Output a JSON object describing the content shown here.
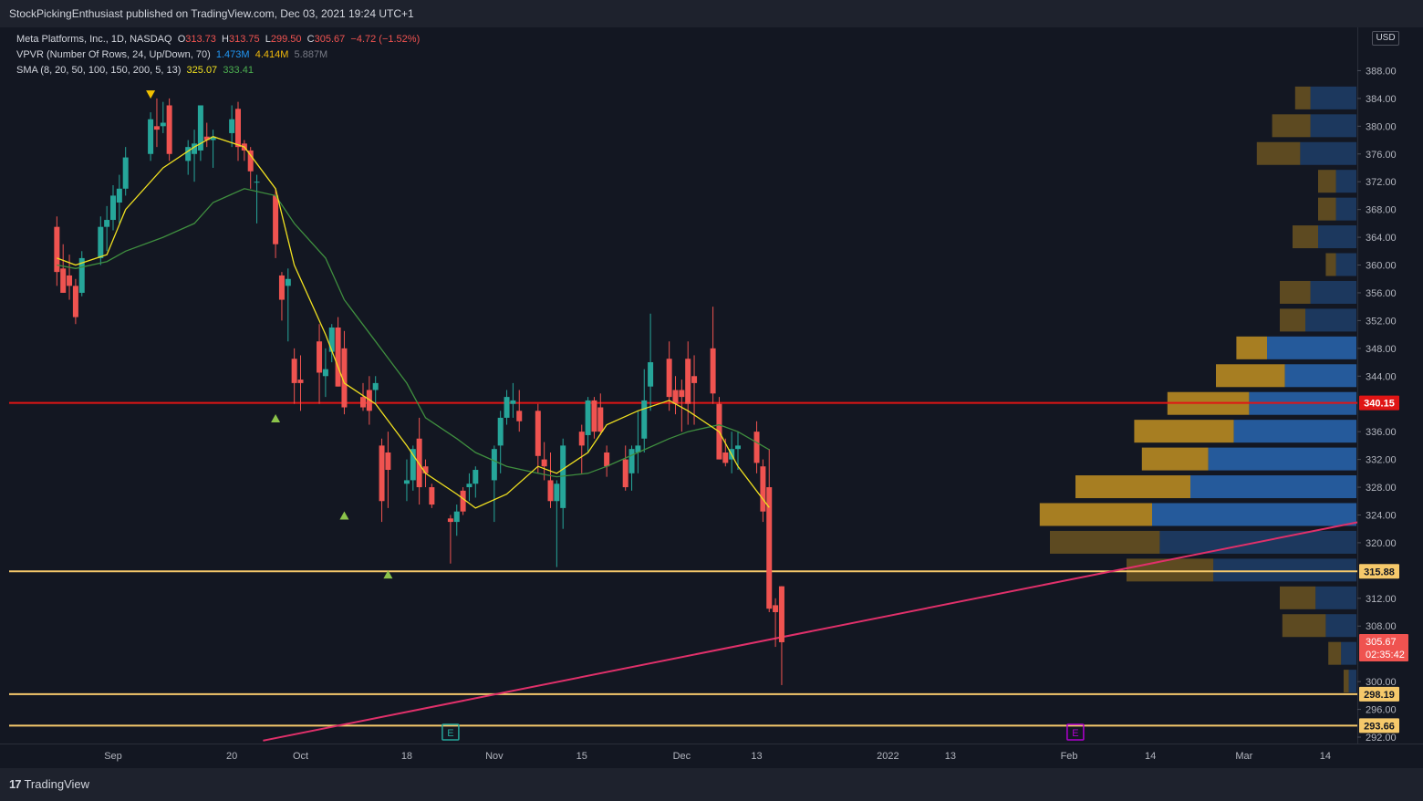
{
  "header": {
    "publisher": "StockPickingEnthusiast published on TradingView.com, Dec 03, 2021 19:24 UTC+1"
  },
  "legend": {
    "symbol": "Meta Platforms, Inc., 1D, NASDAQ",
    "o_label": "O",
    "o": "313.73",
    "h_label": "H",
    "h": "313.75",
    "l_label": "L",
    "l": "299.50",
    "c_label": "C",
    "c": "305.67",
    "change": "−4.72 (−1.52%)",
    "vpvr_label": "VPVR (Number Of Rows, 24, Up/Down, 70)",
    "vpvr_up": "1.473M",
    "vpvr_down": "4.414M",
    "vpvr_total": "5.887M",
    "sma_label": "SMA (8, 20, 50, 100, 150, 200, 5, 13)",
    "sma_fast": "325.07",
    "sma_slow": "333.41"
  },
  "currency": "USD",
  "footer": {
    "logo_text": "TradingView"
  },
  "colors": {
    "background": "#131722",
    "up": "#26a69a",
    "down": "#ef5350",
    "sma_fast": "#f0e020",
    "sma_slow": "#3f8f3f",
    "resistance": "#e01515",
    "support": "#f6c96b",
    "trendline": "#e0306a",
    "vp_up": "#2862a8",
    "vp_down": "#b88a22"
  },
  "chart_data": {
    "type": "candlestick",
    "y_axis": {
      "range": [
        292,
        392
      ],
      "ticks": [
        "388.00",
        "384.00",
        "380.00",
        "376.00",
        "372.00",
        "368.00",
        "364.00",
        "360.00",
        "356.00",
        "352.00",
        "348.00",
        "344.00",
        "336.00",
        "332.00",
        "328.00",
        "324.00",
        "320.00",
        "312.00",
        "308.00",
        "300.00",
        "296.00",
        "292.00"
      ]
    },
    "x_axis": {
      "ticks": [
        {
          "label": "Sep",
          "date": "2021-09-01"
        },
        {
          "label": "20",
          "date": "2021-09-20"
        },
        {
          "label": "Oct",
          "date": "2021-10-01"
        },
        {
          "label": "18",
          "date": "2021-10-18"
        },
        {
          "label": "Nov",
          "date": "2021-11-01"
        },
        {
          "label": "15",
          "date": "2021-11-15"
        },
        {
          "label": "Dec",
          "date": "2021-12-01"
        },
        {
          "label": "13",
          "date": "2021-12-13"
        },
        {
          "label": "2022",
          "date": "2022-01-03"
        },
        {
          "label": "13",
          "date": "2022-01-13"
        },
        {
          "label": "Feb",
          "date": "2022-02-01"
        },
        {
          "label": "14",
          "date": "2022-02-14"
        },
        {
          "label": "Mar",
          "date": "2022-03-01"
        },
        {
          "label": "14",
          "date": "2022-03-14"
        }
      ]
    },
    "candles": [
      {
        "date": "2021-08-23",
        "o": 365.5,
        "h": 367.0,
        "l": 357.0,
        "c": 359.0
      },
      {
        "date": "2021-08-24",
        "o": 359.5,
        "h": 363.0,
        "l": 356.0,
        "c": 356.0
      },
      {
        "date": "2021-08-25",
        "o": 358.5,
        "h": 361.5,
        "l": 355.0,
        "c": 357.0
      },
      {
        "date": "2021-08-26",
        "o": 357.0,
        "h": 358.0,
        "l": 351.5,
        "c": 352.5
      },
      {
        "date": "2021-08-27",
        "o": 356.0,
        "h": 362.0,
        "l": 355.5,
        "c": 361.0
      },
      {
        "date": "2021-08-30",
        "o": 361.0,
        "h": 367.0,
        "l": 360.0,
        "c": 365.5
      },
      {
        "date": "2021-08-31",
        "o": 365.5,
        "h": 368.5,
        "l": 362.0,
        "c": 366.5
      },
      {
        "date": "2021-09-01",
        "o": 366.5,
        "h": 371.5,
        "l": 365.0,
        "c": 370.0
      },
      {
        "date": "2021-09-02",
        "o": 369.0,
        "h": 373.0,
        "l": 366.0,
        "c": 371.0
      },
      {
        "date": "2021-09-03",
        "o": 371.0,
        "h": 377.0,
        "l": 370.0,
        "c": 375.5
      },
      {
        "date": "2021-09-07",
        "o": 376.0,
        "h": 382.0,
        "l": 375.0,
        "c": 381.0
      },
      {
        "date": "2021-09-08",
        "o": 380.0,
        "h": 384.0,
        "l": 377.0,
        "c": 379.5
      },
      {
        "date": "2021-09-09",
        "o": 380.0,
        "h": 383.5,
        "l": 379.0,
        "c": 380.5
      },
      {
        "date": "2021-09-10",
        "o": 383.0,
        "h": 384.0,
        "l": 375.0,
        "c": 376.0
      },
      {
        "date": "2021-09-13",
        "o": 375.0,
        "h": 378.0,
        "l": 373.0,
        "c": 377.0
      },
      {
        "date": "2021-09-14",
        "o": 376.0,
        "h": 379.5,
        "l": 372.0,
        "c": 377.5
      },
      {
        "date": "2021-09-15",
        "o": 376.5,
        "h": 383.0,
        "l": 375.0,
        "c": 383.0
      },
      {
        "date": "2021-09-16",
        "o": 378.5,
        "h": 380.5,
        "l": 377.0,
        "c": 378.0
      },
      {
        "date": "2021-09-17",
        "o": 378.0,
        "h": 379.5,
        "l": 374.0,
        "c": 378.5
      },
      {
        "date": "2021-09-20",
        "o": 379.0,
        "h": 383.0,
        "l": 377.0,
        "c": 381.0
      },
      {
        "date": "2021-09-21",
        "o": 382.5,
        "h": 383.5,
        "l": 375.0,
        "c": 377.0
      },
      {
        "date": "2021-09-22",
        "o": 377.5,
        "h": 378.0,
        "l": 375.0,
        "c": 376.5
      },
      {
        "date": "2021-09-23",
        "o": 376.5,
        "h": 377.0,
        "l": 371.0,
        "c": 373.5
      },
      {
        "date": "2021-09-24",
        "o": 372.0,
        "h": 373.0,
        "l": 366.0,
        "c": 372.0
      },
      {
        "date": "2021-09-27",
        "o": 370.0,
        "h": 371.0,
        "l": 361.0,
        "c": 363.0
      },
      {
        "date": "2021-09-28",
        "o": 358.5,
        "h": 359.0,
        "l": 352.0,
        "c": 355.0
      },
      {
        "date": "2021-09-29",
        "o": 357.0,
        "h": 359.5,
        "l": 349.0,
        "c": 358.0
      },
      {
        "date": "2021-09-30",
        "o": 346.5,
        "h": 348.0,
        "l": 340.0,
        "c": 343.0
      },
      {
        "date": "2021-10-01",
        "o": 343.5,
        "h": 347.0,
        "l": 339.0,
        "c": 343.0
      },
      {
        "date": "2021-10-04",
        "o": 349.0,
        "h": 351.5,
        "l": 340.0,
        "c": 344.5
      },
      {
        "date": "2021-10-05",
        "o": 344.0,
        "h": 348.0,
        "l": 341.0,
        "c": 345.0
      },
      {
        "date": "2021-10-06",
        "o": 347.5,
        "h": 351.5,
        "l": 346.0,
        "c": 351.0
      },
      {
        "date": "2021-10-07",
        "o": 351.0,
        "h": 352.5,
        "l": 342.5,
        "c": 342.5
      },
      {
        "date": "2021-10-08",
        "o": 348.0,
        "h": 350.5,
        "l": 338.5,
        "c": 339.5
      },
      {
        "date": "2021-10-11",
        "o": 341.0,
        "h": 343.0,
        "l": 339.0,
        "c": 339.5
      },
      {
        "date": "2021-10-12",
        "o": 342.0,
        "h": 344.0,
        "l": 337.0,
        "c": 339.0
      },
      {
        "date": "2021-10-13",
        "o": 342.0,
        "h": 344.0,
        "l": 340.0,
        "c": 343.0
      },
      {
        "date": "2021-10-14",
        "o": 334.0,
        "h": 335.0,
        "l": 323.0,
        "c": 326.0
      },
      {
        "date": "2021-10-15",
        "o": 333.0,
        "h": 336.0,
        "l": 325.0,
        "c": 330.5
      },
      {
        "date": "2021-10-18",
        "o": 328.5,
        "h": 332.0,
        "l": 326.0,
        "c": 329.0
      },
      {
        "date": "2021-10-19",
        "o": 329.0,
        "h": 334.0,
        "l": 327.5,
        "c": 333.5
      },
      {
        "date": "2021-10-20",
        "o": 335.0,
        "h": 338.0,
        "l": 325.5,
        "c": 328.0
      },
      {
        "date": "2021-10-21",
        "o": 331.0,
        "h": 332.0,
        "l": 328.0,
        "c": 330.0
      },
      {
        "date": "2021-10-22",
        "o": 328.0,
        "h": 328.5,
        "l": 325.0,
        "c": 325.5
      },
      {
        "date": "2021-10-25",
        "o": 323.5,
        "h": 324.0,
        "l": 317.0,
        "c": 323.0
      },
      {
        "date": "2021-10-26",
        "o": 323.0,
        "h": 325.5,
        "l": 321.0,
        "c": 324.5
      },
      {
        "date": "2021-10-27",
        "o": 327.5,
        "h": 328.0,
        "l": 324.0,
        "c": 324.5
      },
      {
        "date": "2021-10-28",
        "o": 328.0,
        "h": 330.0,
        "l": 326.0,
        "c": 328.5
      },
      {
        "date": "2021-10-29",
        "o": 328.5,
        "h": 331.0,
        "l": 326.5,
        "c": 330.5
      },
      {
        "date": "2021-11-01",
        "o": 329.0,
        "h": 334.0,
        "l": 323.0,
        "c": 333.5
      },
      {
        "date": "2021-11-02",
        "o": 334.0,
        "h": 339.0,
        "l": 330.0,
        "c": 338.0
      },
      {
        "date": "2021-11-03",
        "o": 338.0,
        "h": 342.0,
        "l": 337.0,
        "c": 341.0
      },
      {
        "date": "2021-11-04",
        "o": 340.0,
        "h": 343.0,
        "l": 338.0,
        "c": 340.5
      },
      {
        "date": "2021-11-05",
        "o": 339.0,
        "h": 342.0,
        "l": 336.0,
        "c": 337.5
      },
      {
        "date": "2021-11-08",
        "o": 339.0,
        "h": 340.0,
        "l": 330.0,
        "c": 332.5
      },
      {
        "date": "2021-11-09",
        "o": 332.0,
        "h": 334.5,
        "l": 329.0,
        "c": 331.0
      },
      {
        "date": "2021-11-10",
        "o": 329.0,
        "h": 333.0,
        "l": 325.0,
        "c": 326.0
      },
      {
        "date": "2021-11-11",
        "o": 326.0,
        "h": 329.0,
        "l": 316.5,
        "c": 328.5
      },
      {
        "date": "2021-11-12",
        "o": 325.0,
        "h": 335.0,
        "l": 322.0,
        "c": 334.0
      },
      {
        "date": "2021-11-15",
        "o": 336.0,
        "h": 337.0,
        "l": 330.0,
        "c": 334.0
      },
      {
        "date": "2021-11-16",
        "o": 335.5,
        "h": 341.0,
        "l": 333.0,
        "c": 340.5
      },
      {
        "date": "2021-11-17",
        "o": 340.5,
        "h": 341.0,
        "l": 335.0,
        "c": 336.0
      },
      {
        "date": "2021-11-18",
        "o": 339.5,
        "h": 341.5,
        "l": 335.5,
        "c": 336.0
      },
      {
        "date": "2021-11-19",
        "o": 333.0,
        "h": 334.0,
        "l": 329.5,
        "c": 331.0
      },
      {
        "date": "2021-11-22",
        "o": 332.0,
        "h": 334.0,
        "l": 327.5,
        "c": 328.0
      },
      {
        "date": "2021-11-23",
        "o": 330.0,
        "h": 334.0,
        "l": 327.5,
        "c": 333.5
      },
      {
        "date": "2021-11-24",
        "o": 333.0,
        "h": 339.0,
        "l": 330.0,
        "c": 334.0
      },
      {
        "date": "2021-11-25",
        "o": 335.0,
        "h": 345.0,
        "l": 333.0,
        "c": 340.5
      },
      {
        "date": "2021-11-26",
        "o": 342.5,
        "h": 353.0,
        "l": 339.0,
        "c": 346.0
      },
      {
        "date": "2021-11-29",
        "o": 346.5,
        "h": 349.0,
        "l": 339.0,
        "c": 341.0
      },
      {
        "date": "2021-11-30",
        "o": 342.0,
        "h": 344.0,
        "l": 338.5,
        "c": 340.0
      },
      {
        "date": "2021-12-01",
        "o": 342.0,
        "h": 343.5,
        "l": 336.0,
        "c": 341.0
      },
      {
        "date": "2021-12-02",
        "o": 346.5,
        "h": 349.0,
        "l": 337.0,
        "c": 340.0
      },
      {
        "date": "2021-12-03",
        "o": 344.0,
        "h": 347.0,
        "l": 337.0,
        "c": 343.0
      },
      {
        "date": "2021-12-06",
        "o": 348.0,
        "h": 354.0,
        "l": 340.0,
        "c": 341.5
      },
      {
        "date": "2021-12-07",
        "o": 340.0,
        "h": 341.0,
        "l": 332.0,
        "c": 332.0
      },
      {
        "date": "2021-12-08",
        "o": 333.0,
        "h": 335.0,
        "l": 331.0,
        "c": 331.5
      },
      {
        "date": "2021-12-09",
        "o": 332.0,
        "h": 336.0,
        "l": 330.0,
        "c": 333.5
      },
      {
        "date": "2021-12-10",
        "o": 333.5,
        "h": 336.0,
        "l": 330.5,
        "c": 334.0
      },
      {
        "date": "2021-12-13",
        "o": 336.0,
        "h": 337.5,
        "l": 330.0,
        "c": 331.5
      },
      {
        "date": "2021-12-14",
        "o": 331.0,
        "h": 332.0,
        "l": 323.0,
        "c": 324.5
      },
      {
        "date": "2021-12-15",
        "o": 328.0,
        "h": 333.5,
        "l": 310.0,
        "c": 310.5
      },
      {
        "date": "2021-12-16",
        "o": 311.0,
        "h": 312.0,
        "l": 305.0,
        "c": 310.0
      },
      {
        "date": "2021-12-17",
        "o": 313.73,
        "h": 313.75,
        "l": 299.5,
        "c": 305.67
      }
    ],
    "sma_fast": [
      [
        0,
        361.0
      ],
      [
        3,
        360.0
      ],
      [
        6,
        361.5
      ],
      [
        9,
        368.0
      ],
      [
        12,
        374.0
      ],
      [
        15,
        377.0
      ],
      [
        18,
        378.5
      ],
      [
        21,
        377.0
      ],
      [
        24,
        371.0
      ],
      [
        27,
        360.0
      ],
      [
        30,
        350.0
      ],
      [
        33,
        343.0
      ],
      [
        36,
        340.0
      ],
      [
        39,
        334.0
      ],
      [
        42,
        330.0
      ],
      [
        45,
        327.0
      ],
      [
        48,
        325.0
      ],
      [
        51,
        327.0
      ],
      [
        54,
        331.0
      ],
      [
        57,
        330.0
      ],
      [
        60,
        333.0
      ],
      [
        63,
        337.0
      ],
      [
        66,
        339.0
      ],
      [
        69,
        340.5
      ],
      [
        72,
        339.0
      ],
      [
        75,
        336.0
      ],
      [
        78,
        331.0
      ],
      [
        81,
        325.07
      ]
    ],
    "sma_slow": [
      [
        0,
        360.0
      ],
      [
        3,
        359.5
      ],
      [
        6,
        360.5
      ],
      [
        9,
        362.0
      ],
      [
        12,
        364.0
      ],
      [
        15,
        366.0
      ],
      [
        18,
        369.0
      ],
      [
        21,
        371.0
      ],
      [
        24,
        370.0
      ],
      [
        27,
        366.0
      ],
      [
        30,
        361.0
      ],
      [
        33,
        355.0
      ],
      [
        36,
        349.0
      ],
      [
        39,
        343.0
      ],
      [
        42,
        338.0
      ],
      [
        45,
        335.0
      ],
      [
        48,
        333.0
      ],
      [
        51,
        331.0
      ],
      [
        54,
        330.0
      ],
      [
        57,
        329.5
      ],
      [
        60,
        330.0
      ],
      [
        63,
        331.0
      ],
      [
        66,
        333.0
      ],
      [
        69,
        335.0
      ],
      [
        72,
        336.0
      ],
      [
        75,
        337.0
      ],
      [
        78,
        336.0
      ],
      [
        81,
        333.41
      ]
    ],
    "horizontal_lines": [
      {
        "price": 340.15,
        "label": "340.15",
        "color": "#e01515"
      },
      {
        "price": 315.88,
        "label": "315.88",
        "color": "#f6c96b"
      },
      {
        "price": 298.19,
        "label": "298.19",
        "color": "#f6c96b"
      },
      {
        "price": 293.66,
        "label": "293.66",
        "color": "#f6c96b"
      }
    ],
    "trendline": {
      "from_date": "2021-09-25",
      "from_price": 291.5,
      "to_date": "2022-03-25",
      "to_price": 324.0
    },
    "markers": [
      {
        "kind": "arrow-down",
        "date": "2021-09-07",
        "price": 384.5,
        "color": "#f0c000"
      },
      {
        "kind": "arrow-up",
        "date": "2021-09-27",
        "price": 338.0,
        "color": "#8bc34a"
      },
      {
        "kind": "arrow-up",
        "date": "2021-10-08",
        "price": 324.0,
        "color": "#8bc34a"
      },
      {
        "kind": "arrow-up",
        "date": "2021-10-15",
        "price": 315.5,
        "color": "#8bc34a"
      }
    ],
    "events": [
      {
        "label": "E",
        "date": "2021-10-25",
        "color": "#26a69a"
      },
      {
        "label": "E",
        "date": "2022-02-02",
        "color": "#b000d0"
      }
    ],
    "last_price": {
      "value": "305.67",
      "countdown": "02:35:42"
    },
    "volume_profile": [
      {
        "price": 384,
        "up": 0.18,
        "down": 0.06
      },
      {
        "price": 380,
        "up": 0.18,
        "down": 0.15
      },
      {
        "price": 376,
        "up": 0.22,
        "down": 0.17
      },
      {
        "price": 372,
        "up": 0.08,
        "down": 0.07
      },
      {
        "price": 368,
        "up": 0.08,
        "down": 0.07
      },
      {
        "price": 364,
        "up": 0.15,
        "down": 0.1
      },
      {
        "price": 360,
        "up": 0.08,
        "down": 0.04
      },
      {
        "price": 356,
        "up": 0.18,
        "down": 0.12
      },
      {
        "price": 352,
        "up": 0.2,
        "down": 0.1
      },
      {
        "price": 348,
        "up": 0.35,
        "down": 0.12
      },
      {
        "price": 344,
        "up": 0.28,
        "down": 0.27
      },
      {
        "price": 340,
        "up": 0.42,
        "down": 0.32
      },
      {
        "price": 336,
        "up": 0.48,
        "down": 0.39
      },
      {
        "price": 332,
        "up": 0.58,
        "down": 0.26
      },
      {
        "price": 328,
        "up": 0.65,
        "down": 0.45
      },
      {
        "price": 324,
        "up": 0.8,
        "down": 0.44
      },
      {
        "price": 320,
        "up": 0.77,
        "down": 0.43
      },
      {
        "price": 316,
        "up": 0.56,
        "down": 0.34
      },
      {
        "price": 312,
        "up": 0.16,
        "down": 0.14
      },
      {
        "price": 308,
        "up": 0.12,
        "down": 0.17
      },
      {
        "price": 304,
        "up": 0.06,
        "down": 0.05
      },
      {
        "price": 300,
        "up": 0.03,
        "down": 0.02
      }
    ]
  }
}
